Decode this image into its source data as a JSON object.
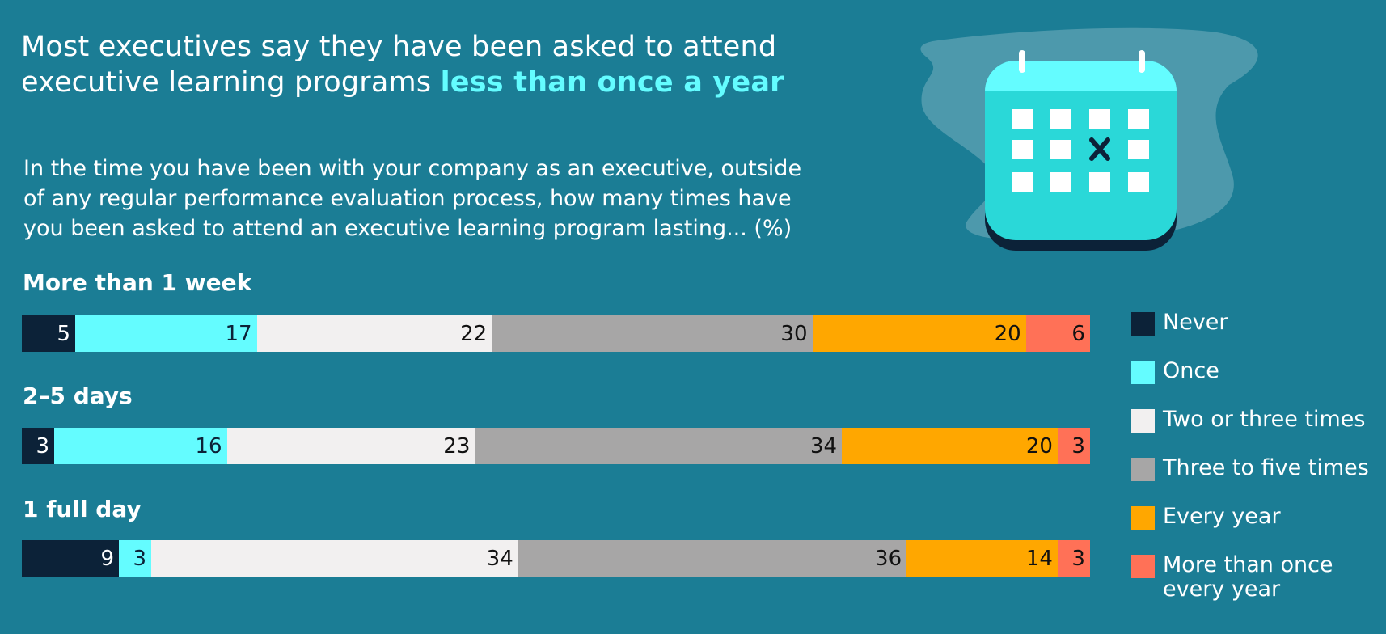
{
  "header": {
    "title_main": "Most executives say they have been asked to attend executive learning programs",
    "title_highlight": "less than once a year",
    "question": "In the time you have been with your company as an executive, outside of any regular performance evaluation process, how many times have you been asked to attend an executive learning program lasting... (%)"
  },
  "colors": {
    "background": "#1b7d95",
    "highlight": "#64fcff",
    "never": "#0c2238",
    "once": "#64fcff",
    "two_three": "#f2f0f0",
    "three_five": "#a7a6a6",
    "every_year": "#ffa700",
    "more_than_once": "#ff7157"
  },
  "chart_data": {
    "type": "bar",
    "orientation": "horizontal",
    "stacked": true,
    "unit": "%",
    "categories": [
      "More than 1 week",
      "2–5 days",
      "1 full day"
    ],
    "series": [
      {
        "name": "Never",
        "color": "#0c2238",
        "label_color": "#ffffff",
        "values": [
          5,
          3,
          9
        ]
      },
      {
        "name": "Once",
        "color": "#64fcff",
        "label_color": "#0c2238",
        "values": [
          17,
          16,
          3
        ]
      },
      {
        "name": "Two or three times",
        "color": "#f2f0f0",
        "label_color": "#111111",
        "values": [
          22,
          23,
          34
        ]
      },
      {
        "name": "Three to five times",
        "color": "#a7a6a6",
        "label_color": "#111111",
        "values": [
          30,
          34,
          36
        ]
      },
      {
        "name": "Every year",
        "color": "#ffa700",
        "label_color": "#111111",
        "values": [
          20,
          20,
          14
        ]
      },
      {
        "name": "More than once every year",
        "color": "#ff7157",
        "label_color": "#111111",
        "values": [
          6,
          3,
          3
        ]
      }
    ],
    "legend_position": "right"
  },
  "illustration": {
    "icon": "calendar-icon",
    "mark": "×"
  }
}
